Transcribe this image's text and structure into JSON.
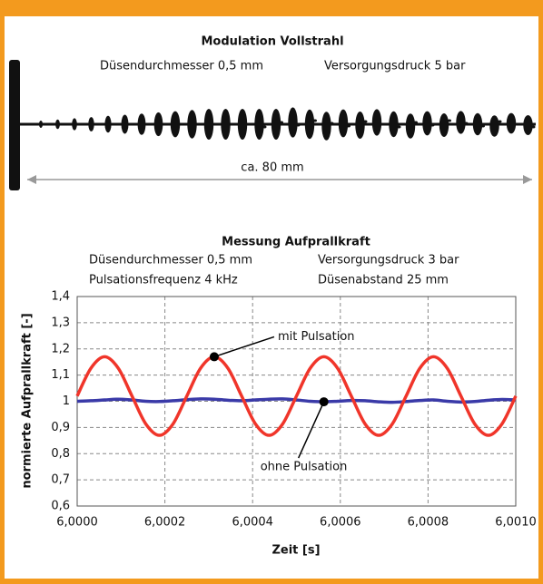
{
  "figure": {
    "title": "Modulation Vollstrahl",
    "nozzle": "Düsendurchmesser 0,5 mm",
    "pressure": "Versorgungsdruck 5 bar",
    "length": "ca. 80 mm"
  },
  "chart_data": {
    "type": "line",
    "title": "Messung Aufprallkraft",
    "subtitles": [
      "Düsendurchmesser 0,5 mm",
      "Versorgungsdruck 3 bar",
      "Pulsationsfrequenz 4 kHz",
      "Düsenabstand 25 mm"
    ],
    "x_label": "Zeit [s]",
    "y_label": "normierte Aufprallkraft [-]",
    "x": [
      6.0,
      6.00003125,
      6.0000625,
      6.00009375,
      6.000125,
      6.00015625,
      6.0001875,
      6.00021875,
      6.00025,
      6.00028125,
      6.0003125,
      6.00034375,
      6.000375,
      6.00040625,
      6.0004375,
      6.00046875,
      6.0005,
      6.00053125,
      6.0005625,
      6.00059375,
      6.000625,
      6.00065625,
      6.0006875,
      6.00071875,
      6.00075,
      6.00078125,
      6.0008125,
      6.00084375,
      6.000875,
      6.00090625,
      6.0009375,
      6.00096875,
      6.001
    ],
    "series": [
      {
        "name": "mit Pulsation",
        "color": "#f0352a",
        "values": [
          1.02,
          1.126,
          1.17,
          1.126,
          1.02,
          0.914,
          0.87,
          0.914,
          1.02,
          1.126,
          1.17,
          1.126,
          1.02,
          0.914,
          0.87,
          0.914,
          1.02,
          1.126,
          1.17,
          1.126,
          1.02,
          0.914,
          0.87,
          0.914,
          1.02,
          1.126,
          1.17,
          1.126,
          1.02,
          0.914,
          0.87,
          0.914,
          1.02
        ]
      },
      {
        "name": "ohne Pulsation",
        "color": "#3a3aa8",
        "values": [
          1.0,
          1.002,
          1.005,
          1.008,
          1.005,
          1.0,
          0.999,
          1.002,
          1.006,
          1.009,
          1.008,
          1.004,
          1.002,
          1.005,
          1.008,
          1.009,
          1.005,
          1.0,
          0.998,
          1.0,
          1.003,
          1.002,
          0.998,
          0.996,
          0.999,
          1.003,
          1.005,
          1.0,
          0.997,
          0.999,
          1.004,
          1.007,
          1.005
        ]
      }
    ],
    "annotations": [
      {
        "text": "mit Pulsation",
        "series": 0,
        "index": 10
      },
      {
        "text": "ohne Pulsation",
        "series": 1,
        "index": 18
      }
    ],
    "xlim": [
      6.0,
      6.001
    ],
    "xticks": [
      {
        "value": 6.0,
        "label": "6,0000"
      },
      {
        "value": 6.0002,
        "label": "6,0002"
      },
      {
        "value": 6.0004,
        "label": "6,0004"
      },
      {
        "value": 6.0006,
        "label": "6,0006"
      },
      {
        "value": 6.0008,
        "label": "6,0008"
      },
      {
        "value": 6.001,
        "label": "6,0010"
      }
    ],
    "ylim": [
      0.6,
      1.4
    ],
    "yticks": [
      {
        "value": 0.6,
        "label": "0,6"
      },
      {
        "value": 0.7,
        "label": "0,7"
      },
      {
        "value": 0.8,
        "label": "0,8"
      },
      {
        "value": 0.9,
        "label": "0,9"
      },
      1,
      {
        "value": 1.1,
        "label": "1,1"
      },
      {
        "value": 1.2,
        "label": "1,2"
      },
      {
        "value": 1.3,
        "label": "1,3"
      },
      {
        "value": 1.4,
        "label": "1,4"
      }
    ],
    "grid": true
  }
}
